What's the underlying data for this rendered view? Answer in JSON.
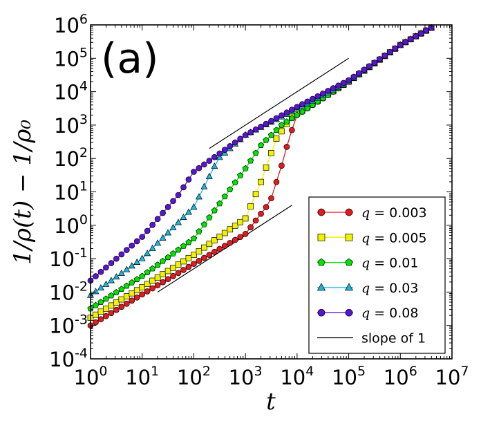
{
  "chart_data": {
    "type": "line",
    "panel_label": "(a)",
    "xlabel": "t",
    "ylabel": "1/ρ(t) − 1/ρ₀",
    "xscale": "log",
    "yscale": "log",
    "xlim": [
      1,
      10000000
    ],
    "ylim": [
      0.0001,
      1000000
    ],
    "x_ticks": [
      {
        "value": 1,
        "base": "10",
        "exp": "0"
      },
      {
        "value": 10,
        "base": "10",
        "exp": "1"
      },
      {
        "value": 100,
        "base": "10",
        "exp": "2"
      },
      {
        "value": 1000,
        "base": "10",
        "exp": "3"
      },
      {
        "value": 10000,
        "base": "10",
        "exp": "4"
      },
      {
        "value": 100000,
        "base": "10",
        "exp": "5"
      },
      {
        "value": 1000000,
        "base": "10",
        "exp": "6"
      },
      {
        "value": 10000000,
        "base": "10",
        "exp": "7"
      }
    ],
    "y_ticks": [
      {
        "value": 0.0001,
        "base": "10",
        "exp": "-4"
      },
      {
        "value": 0.001,
        "base": "10",
        "exp": "-3"
      },
      {
        "value": 0.01,
        "base": "10",
        "exp": "-2"
      },
      {
        "value": 0.1,
        "base": "10",
        "exp": "-1"
      },
      {
        "value": 1,
        "base": "10",
        "exp": "0"
      },
      {
        "value": 10,
        "base": "10",
        "exp": "1"
      },
      {
        "value": 100,
        "base": "10",
        "exp": "2"
      },
      {
        "value": 1000,
        "base": "10",
        "exp": "3"
      },
      {
        "value": 10000,
        "base": "10",
        "exp": "4"
      },
      {
        "value": 100000,
        "base": "10",
        "exp": "5"
      },
      {
        "value": 1000000,
        "base": "10",
        "exp": "6"
      }
    ],
    "legend_position": "lower-right",
    "series": [
      {
        "name": "q = 0.003",
        "q_label": "q",
        "q_value": "= 0.003",
        "color": "#e41a1c",
        "marker": "circle",
        "anchors": [
          [
            1,
            0.001
          ],
          [
            10,
            0.0085
          ],
          [
            100,
            0.07
          ],
          [
            1000,
            0.55
          ],
          [
            3000,
            5
          ],
          [
            5000,
            60
          ],
          [
            7000,
            400
          ],
          [
            10000,
            2000
          ],
          [
            100000,
            20000
          ],
          [
            1000000,
            250000
          ],
          [
            5000000,
            1000000
          ]
        ]
      },
      {
        "name": "q = 0.005",
        "q_label": "q",
        "q_value": "= 0.005",
        "color": "#f2f200",
        "marker": "square",
        "anchors": [
          [
            1,
            0.0017
          ],
          [
            10,
            0.014
          ],
          [
            100,
            0.13
          ],
          [
            1000,
            1.6
          ],
          [
            2000,
            20
          ],
          [
            4000,
            400
          ],
          [
            8000,
            1800
          ],
          [
            100000,
            20000
          ],
          [
            1000000,
            250000
          ],
          [
            5000000,
            1000000
          ]
        ]
      },
      {
        "name": "q = 0.01",
        "q_label": "q",
        "q_value": "= 0.01",
        "color": "#00e400",
        "marker": "pentagon",
        "anchors": [
          [
            1,
            0.0032
          ],
          [
            10,
            0.03
          ],
          [
            100,
            0.4
          ],
          [
            1000,
            50
          ],
          [
            2000,
            250
          ],
          [
            5000,
            1000
          ],
          [
            100000,
            20000
          ],
          [
            1000000,
            250000
          ],
          [
            5000000,
            1000000
          ]
        ]
      },
      {
        "name": "q = 0.03",
        "q_label": "q",
        "q_value": "= 0.03",
        "color": "#20b4dc",
        "marker": "triangle",
        "anchors": [
          [
            1,
            0.008
          ],
          [
            10,
            0.1
          ],
          [
            100,
            3.5
          ],
          [
            300,
            100
          ],
          [
            1000,
            500
          ],
          [
            10000,
            3000
          ],
          [
            100000,
            20000
          ],
          [
            1000000,
            250000
          ],
          [
            5000000,
            1000000
          ]
        ]
      },
      {
        "name": "q = 0.08",
        "q_label": "q",
        "q_value": "= 0.08",
        "color": "#5a14d2",
        "marker": "circle",
        "anchors": [
          [
            1,
            0.022
          ],
          [
            10,
            0.45
          ],
          [
            50,
            8
          ],
          [
            100,
            40
          ],
          [
            1000,
            500
          ],
          [
            10000,
            3500
          ],
          [
            100000,
            22000
          ],
          [
            1000000,
            250000
          ],
          [
            5000000,
            1000000
          ]
        ]
      }
    ],
    "reference_lines": [
      {
        "name": "slope of 1",
        "points": [
          [
            200,
            200
          ],
          [
            100000,
            100000
          ]
        ]
      },
      {
        "name": "slope of 1",
        "points": [
          [
            20,
            0.01
          ],
          [
            8000,
            4
          ]
        ]
      }
    ],
    "reference_legend": "slope of 1"
  }
}
